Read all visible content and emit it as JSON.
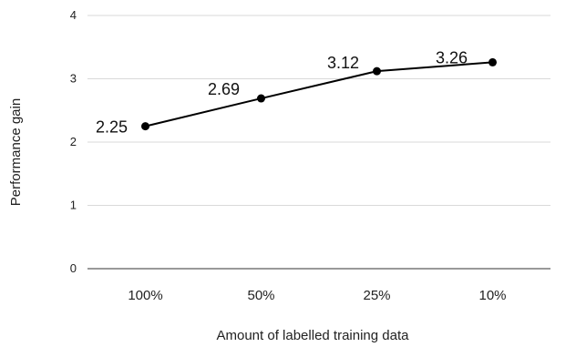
{
  "chart_data": {
    "type": "line",
    "title": "",
    "xlabel": "Amount of labelled training data",
    "ylabel": "Performance gain",
    "categories": [
      "100%",
      "50%",
      "25%",
      "10%"
    ],
    "series": [
      {
        "values": [
          2.25,
          2.69,
          3.12,
          3.26
        ],
        "data_labels": [
          "2.25",
          "2.69",
          "3.12",
          "3.26"
        ],
        "color": "#000000",
        "marker": "circle"
      }
    ],
    "ylim": [
      0,
      4
    ],
    "yticks": [
      "0",
      "1",
      "2",
      "3",
      "4"
    ],
    "grid": true,
    "legend": "none"
  }
}
